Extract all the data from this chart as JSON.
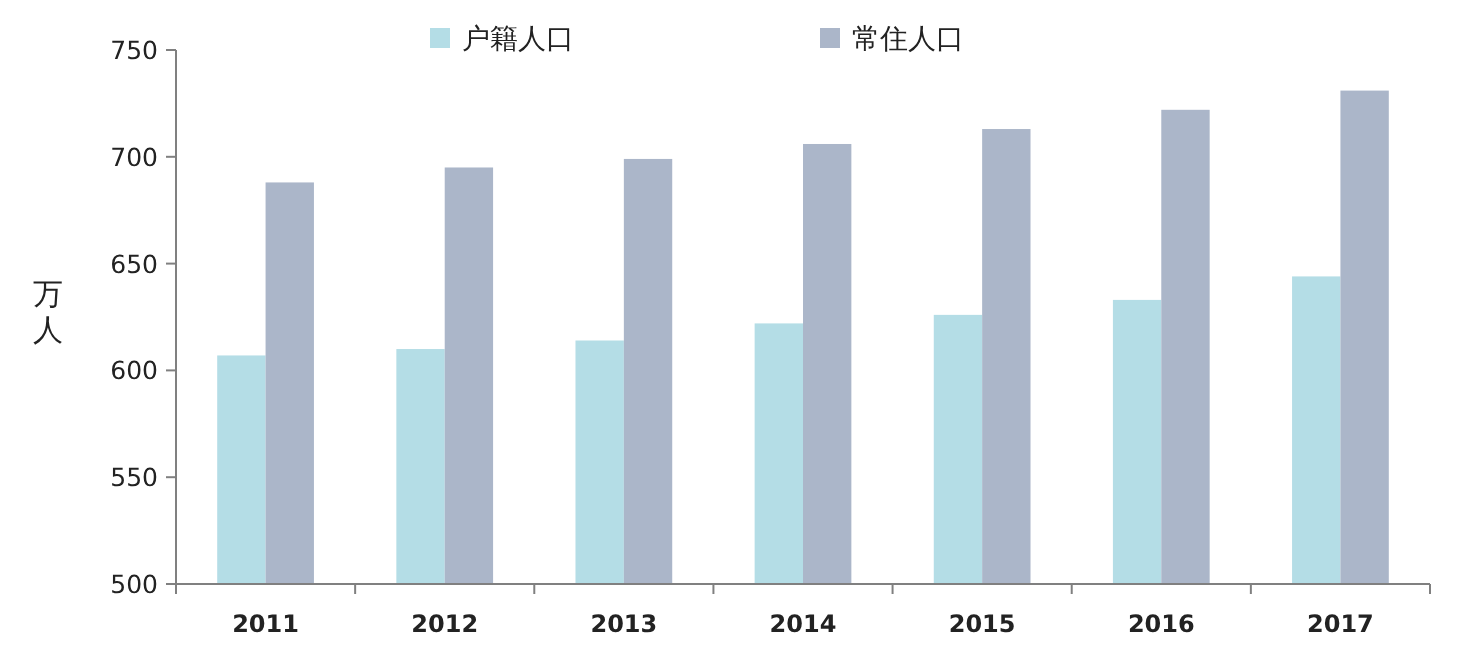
{
  "chart_data": {
    "type": "bar",
    "ylabel": "万人",
    "categories": [
      "2011",
      "2012",
      "2013",
      "2014",
      "2015",
      "2016",
      "2017"
    ],
    "series": [
      {
        "name": "户籍人口",
        "color": "#b4dde6",
        "values": [
          607,
          610,
          614,
          622,
          626,
          633,
          644
        ]
      },
      {
        "name": "常住人口",
        "color": "#abb6c9",
        "values": [
          688,
          695,
          699,
          706,
          713,
          722,
          731
        ]
      }
    ],
    "ylim": [
      500,
      750
    ],
    "yticks": [
      500,
      550,
      600,
      650,
      700,
      750
    ],
    "grid": false,
    "legend": "top"
  }
}
